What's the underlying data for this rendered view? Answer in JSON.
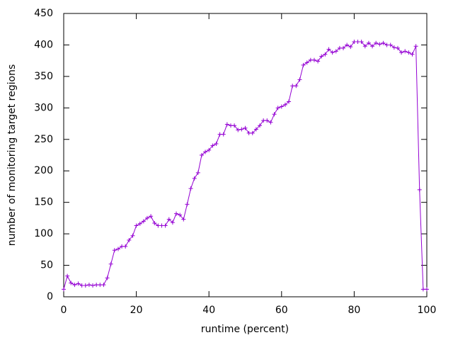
{
  "chart_data": {
    "type": "line",
    "x_label": "runtime (percent)",
    "y_label": "number of monitoring target regions",
    "x": [
      0,
      1,
      2,
      3,
      4,
      5,
      6,
      7,
      8,
      9,
      10,
      11,
      12,
      13,
      14,
      15,
      16,
      17,
      18,
      19,
      20,
      21,
      22,
      23,
      24,
      25,
      26,
      27,
      28,
      29,
      30,
      31,
      32,
      33,
      34,
      35,
      36,
      37,
      38,
      39,
      40,
      41,
      42,
      43,
      44,
      45,
      46,
      47,
      48,
      49,
      50,
      51,
      52,
      53,
      54,
      55,
      56,
      57,
      58,
      59,
      60,
      61,
      62,
      63,
      64,
      65,
      66,
      67,
      68,
      69,
      70,
      71,
      72,
      73,
      74,
      75,
      76,
      77,
      78,
      79,
      80,
      81,
      82,
      83,
      84,
      85,
      86,
      87,
      88,
      89,
      90,
      91,
      92,
      93,
      94,
      95,
      96,
      97,
      98,
      99,
      100
    ],
    "series": [
      {
        "color": "#9400d3",
        "values": [
          12,
          33,
          22,
          19,
          21,
          18,
          18,
          19,
          18,
          19,
          19,
          19,
          30,
          52,
          74,
          76,
          80,
          80,
          90,
          97,
          113,
          116,
          120,
          125,
          128,
          117,
          113,
          113,
          113,
          123,
          118,
          132,
          130,
          123,
          147,
          172,
          188,
          197,
          225,
          230,
          233,
          240,
          243,
          258,
          258,
          274,
          272,
          272,
          265,
          266,
          268,
          260,
          260,
          266,
          272,
          280,
          280,
          277,
          290,
          300,
          302,
          305,
          310,
          335,
          335,
          345,
          368,
          372,
          376,
          376,
          374,
          382,
          385,
          393,
          388,
          390,
          395,
          395,
          400,
          397,
          405,
          405,
          405,
          398,
          403,
          398,
          403,
          401,
          403,
          400,
          400,
          396,
          395,
          388,
          390,
          388,
          385,
          398,
          170,
          12,
          12
        ]
      }
    ],
    "xlim": [
      0,
      100
    ],
    "xticks": [
      0,
      20,
      40,
      60,
      80,
      100
    ],
    "ylim": [
      0,
      450
    ],
    "yticks": [
      0,
      50,
      100,
      150,
      200,
      250,
      300,
      350,
      400,
      450
    ]
  }
}
